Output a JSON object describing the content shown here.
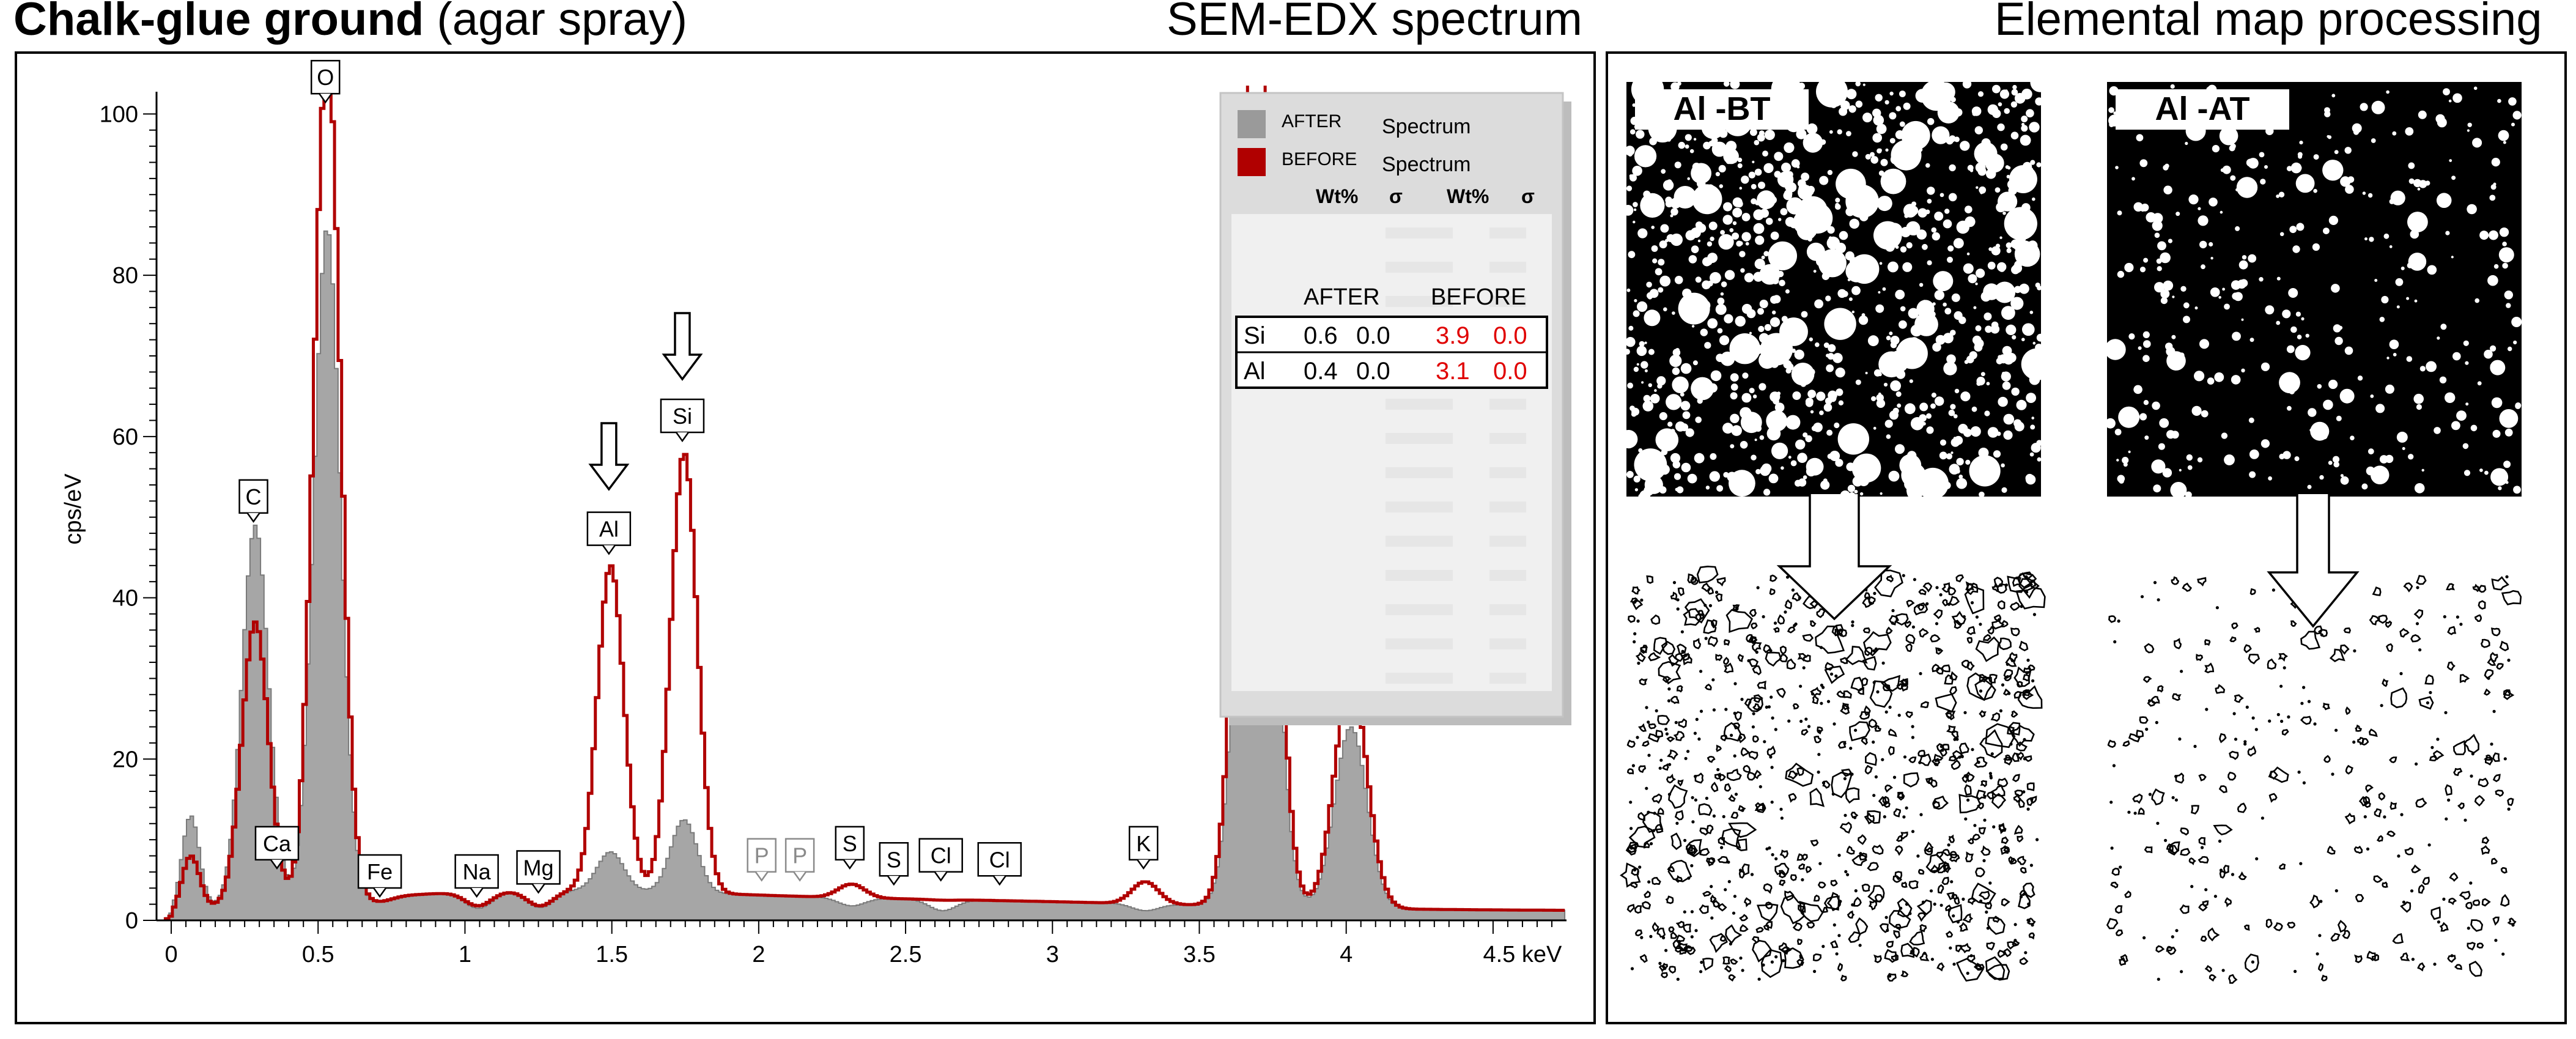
{
  "header": {
    "title_bold": "Chalk-glue ground",
    "title_rest": " (agar spray)",
    "center_title": "SEM-EDX spectrum",
    "right_title": "Elemental map processing"
  },
  "chart_data": {
    "type": "line",
    "xlabel": "",
    "ylabel": "cps/eV",
    "x_unit": "keV",
    "xlim": [
      -0.05,
      4.75
    ],
    "ylim": [
      0,
      102
    ],
    "x_ticks": [
      "0",
      "0.5",
      "1",
      "1.5",
      "2",
      "2.5",
      "3",
      "3.5",
      "4",
      "4.5 keV"
    ],
    "y_ticks": [
      "0",
      "20",
      "40",
      "60",
      "80",
      "100"
    ],
    "peaks_after": [
      {
        "x": 0.06,
        "y": 13
      },
      {
        "x": 0.28,
        "y": 49
      },
      {
        "x": 0.525,
        "y": 86
      },
      {
        "x": 0.7,
        "y": 2.3
      },
      {
        "x": 1.04,
        "y": 1.5
      },
      {
        "x": 1.25,
        "y": 1.6
      },
      {
        "x": 1.49,
        "y": 8.5
      },
      {
        "x": 1.74,
        "y": 12.5
      },
      {
        "x": 2.31,
        "y": 1.8
      },
      {
        "x": 2.62,
        "y": 1.2
      },
      {
        "x": 3.31,
        "y": 1.2
      },
      {
        "x": 3.69,
        "y": 95
      },
      {
        "x": 4.01,
        "y": 24
      }
    ],
    "peaks_before": [
      {
        "x": 0.06,
        "y": 8
      },
      {
        "x": 0.28,
        "y": 37
      },
      {
        "x": 0.525,
        "y": 108
      },
      {
        "x": 0.7,
        "y": 2.3
      },
      {
        "x": 1.04,
        "y": 1.8
      },
      {
        "x": 1.25,
        "y": 1.8
      },
      {
        "x": 1.49,
        "y": 44
      },
      {
        "x": 1.74,
        "y": 58
      },
      {
        "x": 2.31,
        "y": 4.5
      },
      {
        "x": 2.62,
        "y": 2.5
      },
      {
        "x": 3.31,
        "y": 4.8
      },
      {
        "x": 3.69,
        "y": 120
      },
      {
        "x": 4.01,
        "y": 30
      }
    ],
    "series": [
      {
        "name": "AFTER",
        "label": "Spectrum",
        "color": "#a6a6a6",
        "style": "filled"
      },
      {
        "name": "BEFORE",
        "label": "Spectrum",
        "color": "#b00000",
        "style": "line"
      }
    ],
    "peak_labels": [
      {
        "text": "C",
        "x": 0.28,
        "y": 49
      },
      {
        "text": "O",
        "x": 0.525,
        "y": 101
      },
      {
        "text": "Ca",
        "x": 0.36,
        "y": 6
      },
      {
        "text": "Fe",
        "x": 0.71,
        "y": 2.5
      },
      {
        "text": "Na",
        "x": 1.04,
        "y": 2.5
      },
      {
        "text": "Mg",
        "x": 1.25,
        "y": 3
      },
      {
        "text": "Al",
        "x": 1.49,
        "y": 45
      },
      {
        "text": "Si",
        "x": 1.74,
        "y": 59
      },
      {
        "text": "P",
        "x": 2.01,
        "y": 4.5,
        "faded": true
      },
      {
        "text": "P",
        "x": 2.14,
        "y": 4.5,
        "faded": true
      },
      {
        "text": "S",
        "x": 2.31,
        "y": 6
      },
      {
        "text": "S",
        "x": 2.46,
        "y": 4
      },
      {
        "text": "Cl",
        "x": 2.62,
        "y": 4.5
      },
      {
        "text": "Cl",
        "x": 2.82,
        "y": 4
      },
      {
        "text": "K",
        "x": 3.31,
        "y": 6
      }
    ],
    "arrows_at": [
      1.49,
      1.74
    ],
    "table": {
      "col_headers": [
        "Wt%",
        "σ",
        "Wt%",
        "σ"
      ],
      "group_headers": [
        "AFTER",
        "BEFORE"
      ],
      "rows": [
        {
          "element": "Si",
          "after_wt": "0.6",
          "after_sigma": "0.0",
          "before_wt": "3.9",
          "before_sigma": "0.0"
        },
        {
          "element": "Al",
          "after_wt": "0.4",
          "after_sigma": "0.0",
          "before_wt": "3.1",
          "before_sigma": "0.0"
        }
      ],
      "before_value_color": "#e00000"
    }
  },
  "maps": [
    {
      "label": "Al -BT",
      "coverage": "high"
    },
    {
      "label": "Al -AT",
      "coverage": "low"
    }
  ]
}
